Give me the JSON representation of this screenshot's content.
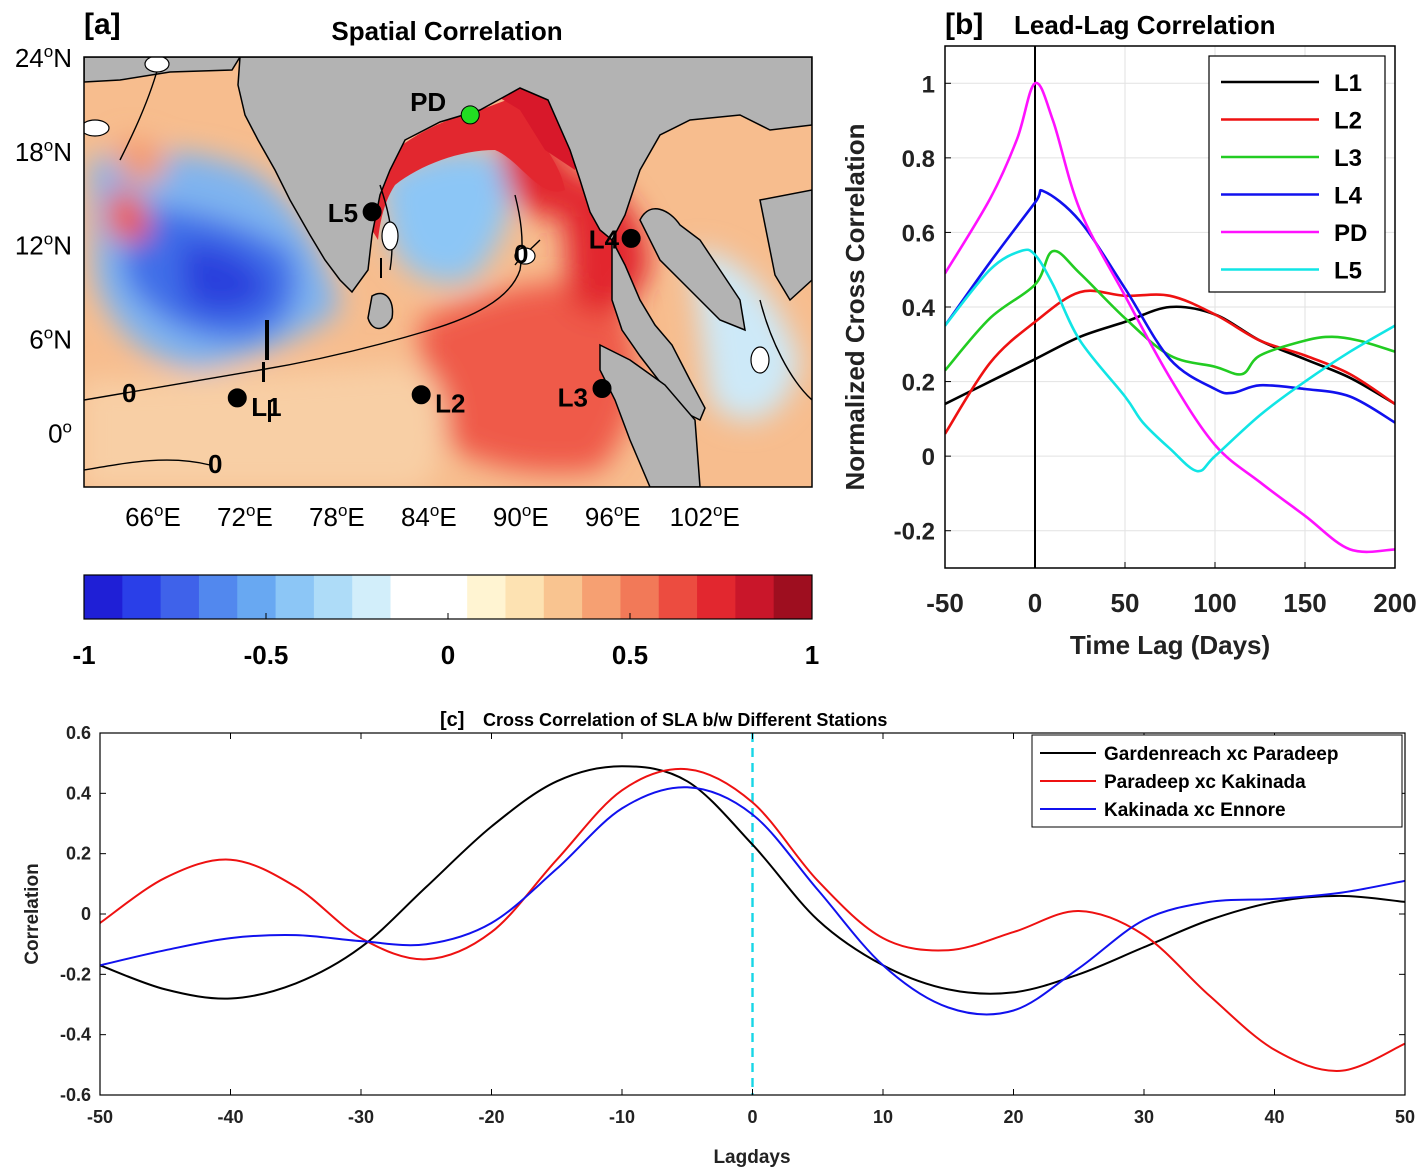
{
  "panel_a": {
    "tag": "[a]",
    "title": "Spatial Correlation",
    "lat_ticks": [
      {
        "lat": 24,
        "deg": "24",
        "hemi": "N"
      },
      {
        "lat": 18,
        "deg": "18",
        "hemi": "N"
      },
      {
        "lat": 12,
        "deg": "12",
        "hemi": "N"
      },
      {
        "lat": 6,
        "deg": "6",
        "hemi": "N"
      },
      {
        "lat": 0,
        "deg": "0",
        "hemi": ""
      }
    ],
    "lon_ticks": [
      {
        "lon": 66,
        "deg": "66",
        "hemi": "E"
      },
      {
        "lon": 72,
        "deg": "72",
        "hemi": "E"
      },
      {
        "lon": 78,
        "deg": "78",
        "hemi": "E"
      },
      {
        "lon": 84,
        "deg": "84",
        "hemi": "E"
      },
      {
        "lon": 90,
        "deg": "90",
        "hemi": "E"
      },
      {
        "lon": 96,
        "deg": "96",
        "hemi": "E"
      },
      {
        "lon": 102,
        "deg": "102",
        "hemi": "E"
      }
    ],
    "lon_range": [
      61.5,
      109
    ],
    "lat_range": [
      -3.5,
      24
    ],
    "stations": [
      {
        "label": "PD",
        "lon": 86.7,
        "lat": 20.3,
        "color": "#22dd22"
      },
      {
        "label": "L5",
        "lon": 80.3,
        "lat": 14.1,
        "color": "#000000"
      },
      {
        "label": "L4",
        "lon": 97.2,
        "lat": 12.4,
        "color": "#000000"
      },
      {
        "label": "L1",
        "lon": 71.5,
        "lat": 2.2,
        "color": "#000000"
      },
      {
        "label": "L2",
        "lon": 83.5,
        "lat": 2.4,
        "color": "#000000"
      },
      {
        "label": "L3",
        "lon": 95.3,
        "lat": 2.8,
        "color": "#000000"
      }
    ],
    "contour_label": "0",
    "colorbar": {
      "ticks": [
        "-1",
        "-0.5",
        "0",
        "0.5",
        "1"
      ],
      "colors": [
        "#1f1fd6",
        "#2a3fe8",
        "#3f62ea",
        "#5288ee",
        "#68a8f2",
        "#8cc6f6",
        "#aedcf8",
        "#d2eefa",
        "#ffffff",
        "#ffffff",
        "#fff4d2",
        "#fde2b2",
        "#f9c490",
        "#f6a072",
        "#f27958",
        "#ec4c40",
        "#e2272f",
        "#c9162a",
        "#9e0e1f"
      ]
    }
  },
  "panel_b": {
    "tag": "[b]",
    "title": "Lead-Lag Correlation",
    "xlabel": "Time Lag (Days)",
    "ylabel": "Normalized Cross Correlation",
    "xlim": [
      -50,
      200
    ],
    "ylim": [
      -0.3,
      1.1
    ],
    "xticks": [
      -50,
      0,
      50,
      100,
      150,
      200
    ],
    "yticks": [
      -0.2,
      0,
      0.2,
      0.4,
      0.6,
      0.8,
      1
    ],
    "series": [
      {
        "name": "L1",
        "color": "#000000",
        "x": [
          -50,
          -25,
          0,
          25,
          50,
          75,
          100,
          125,
          150,
          175,
          200
        ],
        "y": [
          0.14,
          0.2,
          0.26,
          0.32,
          0.36,
          0.4,
          0.38,
          0.31,
          0.26,
          0.21,
          0.14
        ]
      },
      {
        "name": "L2",
        "color": "#ee1111",
        "x": [
          -50,
          -25,
          0,
          25,
          50,
          75,
          100,
          125,
          150,
          175,
          200
        ],
        "y": [
          0.06,
          0.25,
          0.36,
          0.44,
          0.43,
          0.43,
          0.38,
          0.31,
          0.27,
          0.22,
          0.14
        ]
      },
      {
        "name": "L3",
        "color": "#22cc22",
        "x": [
          -50,
          -25,
          0,
          10,
          25,
          50,
          75,
          100,
          115,
          125,
          150,
          165,
          180,
          200
        ],
        "y": [
          0.23,
          0.37,
          0.46,
          0.55,
          0.49,
          0.37,
          0.27,
          0.24,
          0.22,
          0.27,
          0.31,
          0.32,
          0.31,
          0.28
        ]
      },
      {
        "name": "L4",
        "color": "#1111ee",
        "x": [
          -50,
          -25,
          0,
          5,
          25,
          50,
          75,
          100,
          110,
          125,
          150,
          175,
          200
        ],
        "y": [
          0.35,
          0.52,
          0.68,
          0.71,
          0.63,
          0.45,
          0.26,
          0.18,
          0.17,
          0.19,
          0.18,
          0.16,
          0.09
        ]
      },
      {
        "name": "PD",
        "color": "#ff11ff",
        "x": [
          -50,
          -25,
          -10,
          0,
          10,
          25,
          50,
          75,
          100,
          125,
          150,
          175,
          200
        ],
        "y": [
          0.49,
          0.69,
          0.85,
          1.0,
          0.9,
          0.66,
          0.43,
          0.21,
          0.03,
          -0.07,
          -0.16,
          -0.25,
          -0.25
        ]
      },
      {
        "name": "L5",
        "color": "#11e5e5",
        "x": [
          -50,
          -25,
          -8,
          0,
          10,
          25,
          50,
          60,
          75,
          90,
          100,
          125,
          150,
          175,
          200
        ],
        "y": [
          0.35,
          0.5,
          0.55,
          0.54,
          0.46,
          0.31,
          0.16,
          0.09,
          0.02,
          -0.04,
          0.0,
          0.11,
          0.2,
          0.28,
          0.35
        ]
      }
    ]
  },
  "panel_c": {
    "tag": "[c]",
    "title": "Cross Correlation of SLA b/w Different Stations",
    "xlabel": "Lagdays",
    "ylabel": "Correlation",
    "xlim": [
      -50,
      50
    ],
    "ylim": [
      -0.6,
      0.6
    ],
    "xticks": [
      -50,
      -40,
      -30,
      -20,
      -10,
      0,
      10,
      20,
      30,
      40,
      50
    ],
    "yticks": [
      -0.6,
      -0.4,
      -0.2,
      0,
      0.2,
      0.4,
      0.6
    ],
    "series": [
      {
        "name": "Gardenreach xc Paradeep",
        "color": "#000000",
        "x": [
          -50,
          -45,
          -40,
          -35,
          -30,
          -25,
          -20,
          -15,
          -10,
          -5,
          0,
          5,
          10,
          15,
          20,
          25,
          30,
          35,
          40,
          45,
          50
        ],
        "y": [
          -0.17,
          -0.25,
          -0.28,
          -0.23,
          -0.11,
          0.09,
          0.29,
          0.44,
          0.49,
          0.44,
          0.23,
          -0.02,
          -0.17,
          -0.25,
          -0.26,
          -0.2,
          -0.11,
          -0.02,
          0.04,
          0.06,
          0.04
        ]
      },
      {
        "name": "Paradeep xc Kakinada",
        "color": "#ee1111",
        "x": [
          -50,
          -45,
          -40,
          -35,
          -30,
          -25,
          -20,
          -15,
          -10,
          -5,
          0,
          5,
          10,
          15,
          20,
          25,
          30,
          35,
          40,
          45,
          50
        ],
        "y": [
          -0.03,
          0.12,
          0.18,
          0.09,
          -0.08,
          -0.15,
          -0.06,
          0.18,
          0.41,
          0.48,
          0.37,
          0.11,
          -0.08,
          -0.12,
          -0.06,
          0.01,
          -0.07,
          -0.27,
          -0.45,
          -0.52,
          -0.43
        ]
      },
      {
        "name": "Kakinada xc Ennore",
        "color": "#1111ee",
        "x": [
          -50,
          -45,
          -40,
          -35,
          -30,
          -25,
          -20,
          -15,
          -10,
          -5,
          0,
          5,
          10,
          15,
          20,
          25,
          30,
          35,
          40,
          45,
          50
        ],
        "y": [
          -0.17,
          -0.12,
          -0.08,
          -0.07,
          -0.09,
          -0.1,
          -0.03,
          0.15,
          0.35,
          0.42,
          0.33,
          0.08,
          -0.17,
          -0.31,
          -0.32,
          -0.18,
          -0.02,
          0.04,
          0.05,
          0.07,
          0.11
        ]
      }
    ],
    "vline_x": 0
  }
}
